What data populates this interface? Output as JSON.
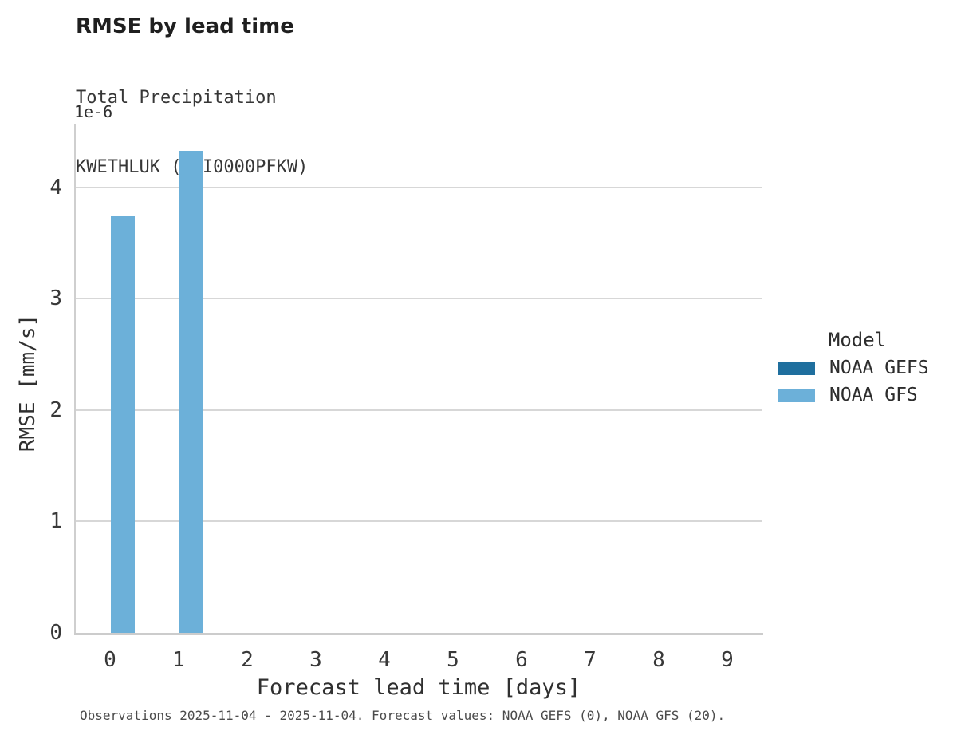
{
  "chart_data": {
    "type": "bar",
    "title": "RMSE by lead time",
    "subtitle": [
      "Total Precipitation",
      "KWETHLUK (USI0000PFKW)"
    ],
    "xlabel": "Forecast lead time [days]",
    "ylabel": "RMSE [mm/s]",
    "y_offset_label": "1e-6",
    "value_scale": "1e-6",
    "categories": [
      0,
      1,
      2,
      3,
      4,
      5,
      6,
      7,
      8,
      9
    ],
    "y_ticks": [
      0,
      1,
      2,
      3,
      4
    ],
    "ylim": [
      0,
      4.57
    ],
    "grid": "horizontal",
    "series": [
      {
        "name": "NOAA GEFS",
        "color": "#1f6f9e",
        "values": [
          null,
          null,
          null,
          null,
          null,
          null,
          null,
          null,
          null,
          null
        ]
      },
      {
        "name": "NOAA GFS",
        "color": "#6cb0d9",
        "values": [
          3.74,
          4.33,
          null,
          null,
          null,
          null,
          null,
          null,
          null,
          null
        ]
      }
    ],
    "legend": {
      "title": "Model",
      "position": "center-right"
    },
    "caption": "Observations 2025-11-04 - 2025-11-04. Forecast values: NOAA GEFS (0), NOAA GFS (20)."
  }
}
